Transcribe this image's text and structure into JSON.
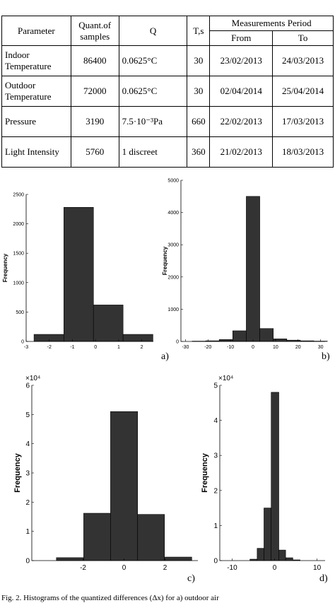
{
  "table": {
    "header": [
      "Parameter",
      "Quant.of samples",
      "Q",
      "T,s",
      "Measurements Period"
    ],
    "subheader": [
      "From",
      "To"
    ],
    "rows": [
      [
        "Indoor Temperature",
        "86400",
        "0.0625°C",
        "30",
        "23/02/2013",
        "24/03/2013"
      ],
      [
        "Outdoor Temperature",
        "72000",
        "0.0625°C",
        "30",
        "02/04/2014",
        "25/04/2014"
      ],
      [
        "Pressure",
        "3190",
        "7.5·10⁻³Pa",
        "660",
        "22/02/2013",
        "17/03/2013"
      ],
      [
        "Light Intensity",
        "5760",
        "1 discreet",
        "360",
        "21/02/2013",
        "18/03/2013"
      ]
    ]
  },
  "chart_data": [
    {
      "type": "histogram",
      "bins": [
        -2.66,
        -1.37,
        -0.09,
        1.19,
        2.48
      ],
      "values": [
        120,
        2280,
        620,
        120
      ],
      "color": "#333333",
      "xlim": [
        -3,
        2.5
      ],
      "ylim": [
        0,
        2500
      ],
      "xticks": [
        -3,
        -2,
        -1,
        0,
        1,
        2
      ],
      "yticks": [
        0,
        500,
        1000,
        1500,
        2000,
        2500
      ],
      "ylabel": "Frequency",
      "panel_label": "a)"
    },
    {
      "type": "histogram",
      "bins": [
        -27,
        -21,
        -15,
        -9,
        -3,
        3,
        9,
        15,
        21,
        27,
        33
      ],
      "values": [
        10,
        20,
        60,
        330,
        4500,
        400,
        80,
        40,
        20,
        10
      ],
      "color": "#333333",
      "xlim": [
        -32,
        32
      ],
      "ylim": [
        0,
        5000
      ],
      "xticks": [
        -30,
        -20,
        -10,
        0,
        10,
        20,
        30
      ],
      "yticks": [
        0,
        1000,
        2000,
        3000,
        4000,
        5000
      ],
      "ylabel": "Frequency",
      "panel_label": "b)"
    },
    {
      "type": "histogram",
      "bins": [
        -3.3,
        -1.97,
        -0.66,
        0.66,
        1.97,
        3.3
      ],
      "values": [
        1000,
        16200,
        51000,
        15800,
        1200
      ],
      "color": "#333333",
      "xlim": [
        -4.5,
        3.6
      ],
      "ylim": [
        0,
        60000
      ],
      "xticks": [
        -2,
        0,
        2
      ],
      "yticks": [
        {
          "value": 0,
          "label": "0"
        },
        {
          "value": 10000,
          "label": "1"
        },
        {
          "value": 20000,
          "label": "2"
        },
        {
          "value": 30000,
          "label": "3"
        },
        {
          "value": 40000,
          "label": "4"
        },
        {
          "value": 50000,
          "label": "5"
        },
        {
          "value": 60000,
          "label": "6"
        }
      ],
      "offset_label": "×10⁴",
      "ylabel": "Frequency",
      "panel_label": "c)"
    },
    {
      "type": "histogram",
      "bins": [
        -5.8,
        -4.1,
        -2.5,
        -0.8,
        1.0,
        2.6,
        4.3,
        6.0
      ],
      "values": [
        400,
        3500,
        15000,
        48000,
        3000,
        800,
        200
      ],
      "color": "#333333",
      "xlim": [
        -12.9,
        11.9
      ],
      "ylim": [
        0,
        50000
      ],
      "xticks": [
        -10,
        0,
        10
      ],
      "yticks": [
        {
          "value": 0,
          "label": "0"
        },
        {
          "value": 10000,
          "label": "1"
        },
        {
          "value": 20000,
          "label": "2"
        },
        {
          "value": 30000,
          "label": "3"
        },
        {
          "value": 40000,
          "label": "4"
        },
        {
          "value": 50000,
          "label": "5"
        }
      ],
      "offset_label": "×10⁴",
      "ylabel": "Frequency",
      "panel_label": "d)"
    }
  ],
  "caption": "Fig. 2. Histograms of the quantized differences (Δx) for a) outdoor air"
}
